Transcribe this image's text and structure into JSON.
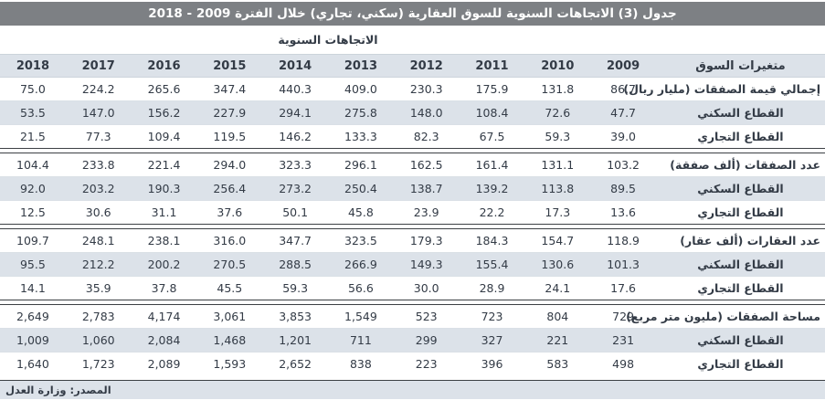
{
  "title": "جدول (3) الاتجاهات السنوية للسوق العقارية (سكني، تجاري) خلال الفترة 2009 - 2018",
  "group_header": "الاتجاهات السنوية",
  "footer": "المصدر: وزارة العدل",
  "colors": {
    "title_bar": "#7d8084",
    "stripe": "#dce2e9",
    "text": "#333b46",
    "divider": "#3c4044"
  },
  "table": {
    "label_header": "متغيرات السوق",
    "years": [
      "2009",
      "2010",
      "2011",
      "2012",
      "2013",
      "2014",
      "2015",
      "2016",
      "2017",
      "2018"
    ],
    "sections": [
      {
        "rows": [
          {
            "label": "إجمالي قيمة الصفقات (مليار ريال)",
            "level": "main",
            "values": [
              "86.7",
              "131.8",
              "175.9",
              "230.3",
              "409.0",
              "440.3",
              "347.4",
              "265.6",
              "224.2",
              "75.0"
            ]
          },
          {
            "label": "القطاع السكني",
            "level": "sub",
            "values": [
              "47.7",
              "72.6",
              "108.4",
              "148.0",
              "275.8",
              "294.1",
              "227.9",
              "156.2",
              "147.0",
              "53.5"
            ]
          },
          {
            "label": "القطاع التجاري",
            "level": "sub",
            "values": [
              "39.0",
              "59.3",
              "67.5",
              "82.3",
              "133.3",
              "146.2",
              "119.5",
              "109.4",
              "77.3",
              "21.5"
            ]
          }
        ]
      },
      {
        "rows": [
          {
            "label": "عدد الصفقات (ألف صفقة)",
            "level": "main",
            "values": [
              "103.2",
              "131.1",
              "161.4",
              "162.5",
              "296.1",
              "323.3",
              "294.0",
              "221.4",
              "233.8",
              "104.4"
            ]
          },
          {
            "label": "القطاع السكني",
            "level": "sub",
            "values": [
              "89.5",
              "113.8",
              "139.2",
              "138.7",
              "250.4",
              "273.2",
              "256.4",
              "190.3",
              "203.2",
              "92.0"
            ]
          },
          {
            "label": "القطاع التجاري",
            "level": "sub",
            "values": [
              "13.6",
              "17.3",
              "22.2",
              "23.9",
              "45.8",
              "50.1",
              "37.6",
              "31.1",
              "30.6",
              "12.5"
            ]
          }
        ]
      },
      {
        "rows": [
          {
            "label": "عدد العقارات (ألف عقار)",
            "level": "main",
            "values": [
              "118.9",
              "154.7",
              "184.3",
              "179.3",
              "323.5",
              "347.7",
              "316.0",
              "238.1",
              "248.1",
              "109.7"
            ]
          },
          {
            "label": "القطاع السكني",
            "level": "sub",
            "values": [
              "101.3",
              "130.6",
              "155.4",
              "149.3",
              "266.9",
              "288.5",
              "270.5",
              "200.2",
              "212.2",
              "95.5"
            ]
          },
          {
            "label": "القطاع التجاري",
            "level": "sub",
            "values": [
              "17.6",
              "24.1",
              "28.9",
              "30.0",
              "56.6",
              "59.3",
              "45.5",
              "37.8",
              "35.9",
              "14.1"
            ]
          }
        ]
      },
      {
        "rows": [
          {
            "label": "مساحة الصفقات (مليون متر مربع)",
            "level": "main",
            "values": [
              "729",
              "804",
              "723",
              "523",
              "1,549",
              "3,853",
              "3,061",
              "4,174",
              "2,783",
              "2,649"
            ]
          },
          {
            "label": "القطاع السكني",
            "level": "sub",
            "values": [
              "231",
              "221",
              "327",
              "299",
              "711",
              "1,201",
              "1,468",
              "2,084",
              "1,060",
              "1,009"
            ]
          },
          {
            "label": "القطاع التجاري",
            "level": "sub",
            "values": [
              "498",
              "583",
              "396",
              "223",
              "838",
              "2,652",
              "1,593",
              "2,089",
              "1,723",
              "1,640"
            ]
          }
        ]
      }
    ]
  }
}
